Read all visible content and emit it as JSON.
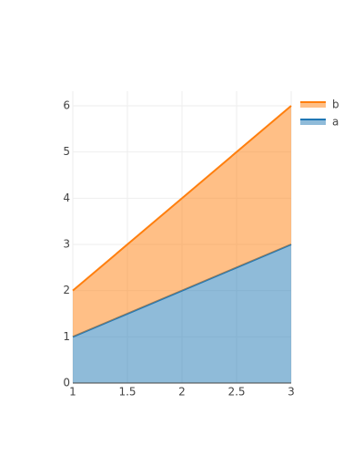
{
  "chart_data": {
    "type": "area",
    "stacked": true,
    "x": [
      1,
      2,
      3
    ],
    "series": [
      {
        "name": "a",
        "color": "#1f77b4",
        "values": [
          1,
          2,
          3
        ]
      },
      {
        "name": "b",
        "color": "#ff7f0e",
        "values": [
          1,
          2,
          3
        ]
      }
    ],
    "xlim": [
      1,
      3
    ],
    "xticks": [
      1,
      1.5,
      2,
      2.5,
      3
    ],
    "ylim": [
      0,
      6.3158
    ],
    "yticks": [
      0,
      1,
      2,
      3,
      4,
      5,
      6
    ],
    "grid": true,
    "legend": "top-right"
  }
}
